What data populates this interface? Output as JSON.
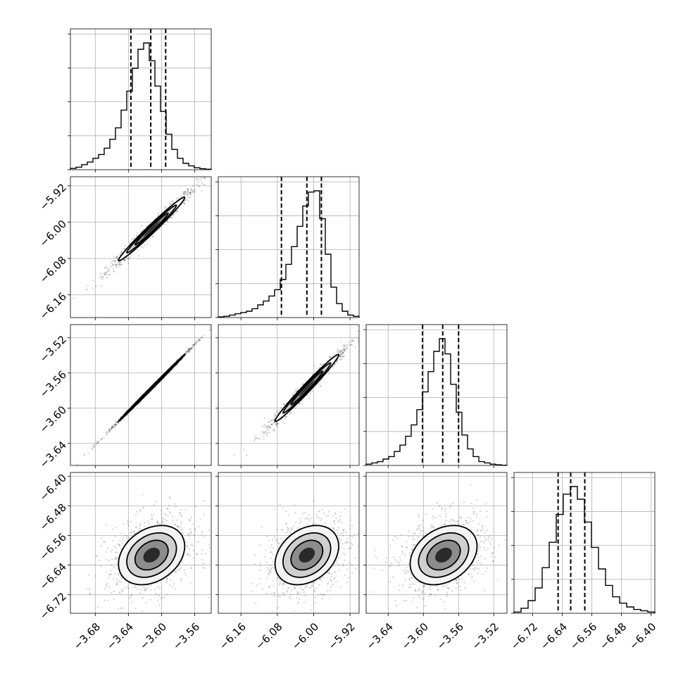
{
  "chart_data": {
    "type": "corner",
    "title": "",
    "n_params": 4,
    "param_labels": [
      "",
      "",
      "",
      ""
    ],
    "ranges": [
      [
        -3.71,
        -3.54
      ],
      [
        -6.21,
        -5.9
      ],
      [
        -3.665,
        -3.505
      ],
      [
        -6.77,
        -6.39
      ]
    ],
    "ticks": [
      [
        -3.68,
        -3.64,
        -3.6,
        -3.56
      ],
      [
        -6.16,
        -6.08,
        -6.0,
        -5.92
      ],
      [
        -3.64,
        -3.6,
        -3.56,
        -3.52
      ],
      [
        -6.72,
        -6.64,
        -6.56,
        -6.48,
        -6.4
      ]
    ],
    "tick_labels": [
      [
        "−3.68",
        "−3.64",
        "−3.60",
        "−3.56"
      ],
      [
        "−6.16",
        "−6.08",
        "−6.00",
        "−5.92"
      ],
      [
        "−3.64",
        "−3.60",
        "−3.56",
        "−3.52"
      ],
      [
        "−6.72",
        "−6.64",
        "−6.56",
        "−6.48",
        "−6.40"
      ]
    ],
    "grid": true,
    "histograms": [
      {
        "edges": [
          -3.71,
          -3.54
        ],
        "counts": [
          0.01,
          0.02,
          0.04,
          0.06,
          0.09,
          0.12,
          0.17,
          0.24,
          0.33,
          0.47,
          0.62,
          0.8,
          0.95,
          1.0,
          0.86,
          0.66,
          0.46,
          0.28,
          0.16,
          0.09,
          0.05,
          0.03,
          0.015,
          0.008,
          0.004
        ]
      },
      {
        "edges": [
          -6.21,
          -5.9
        ],
        "counts": [
          0.005,
          0.01,
          0.02,
          0.03,
          0.04,
          0.05,
          0.07,
          0.1,
          0.13,
          0.17,
          0.22,
          0.3,
          0.42,
          0.56,
          0.72,
          0.88,
          0.99,
          1.0,
          0.78,
          0.5,
          0.24,
          0.11,
          0.05,
          0.02,
          0.01
        ]
      },
      {
        "edges": [
          -3.665,
          -3.505
        ],
        "counts": [
          0.01,
          0.02,
          0.03,
          0.05,
          0.07,
          0.11,
          0.16,
          0.23,
          0.32,
          0.44,
          0.58,
          0.74,
          0.9,
          1.0,
          0.88,
          0.64,
          0.42,
          0.24,
          0.13,
          0.07,
          0.03,
          0.02,
          0.01,
          0.005,
          0.002
        ]
      },
      {
        "edges": [
          -6.77,
          -6.39
        ],
        "counts": [
          0.01,
          0.04,
          0.1,
          0.2,
          0.36,
          0.56,
          0.78,
          0.94,
          1.0,
          0.9,
          0.72,
          0.52,
          0.35,
          0.22,
          0.13,
          0.08,
          0.05,
          0.03,
          0.02,
          0.01
        ]
      }
    ],
    "quantiles": [
      [
        -3.637,
        -3.613,
        -3.595
      ],
      [
        -6.071,
        -6.015,
        -5.983
      ],
      [
        -3.601,
        -3.578,
        -3.56
      ],
      [
        -6.651,
        -6.617,
        -6.579
      ]
    ],
    "pairs": [
      {
        "row": 1,
        "col": 0,
        "mean": [
          -3.612,
          -6.015
        ],
        "sd": [
          0.02,
          0.035
        ],
        "rho": 0.985
      },
      {
        "row": 2,
        "col": 0,
        "mean": [
          -3.612,
          -3.577
        ],
        "sd": [
          0.02,
          0.019
        ],
        "rho": 0.999
      },
      {
        "row": 2,
        "col": 1,
        "mean": [
          -6.015,
          -3.577
        ],
        "sd": [
          0.035,
          0.019
        ],
        "rho": 0.985
      },
      {
        "row": 3,
        "col": 0,
        "mean": [
          -3.612,
          -6.613
        ],
        "sd": [
          0.02,
          0.04
        ],
        "rho": 0.3
      },
      {
        "row": 3,
        "col": 1,
        "mean": [
          -6.015,
          -6.613
        ],
        "sd": [
          0.035,
          0.04
        ],
        "rho": 0.3
      },
      {
        "row": 3,
        "col": 2,
        "mean": [
          -3.577,
          -6.613
        ],
        "sd": [
          0.019,
          0.04
        ],
        "rho": 0.3
      }
    ],
    "colors": {
      "line": "#000000",
      "grid": "#b0b0b0",
      "points": "#000000"
    }
  }
}
